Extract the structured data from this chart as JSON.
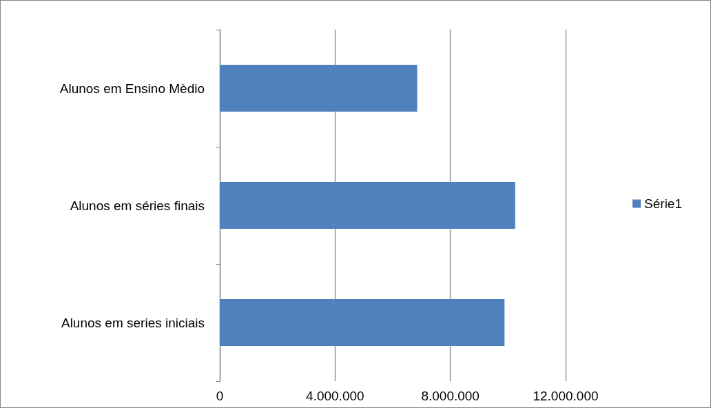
{
  "chart_data": {
    "type": "bar",
    "orientation": "horizontal",
    "categories": [
      "Alunos em Ensino Mèdio",
      "Alunos em séries finais",
      "Alunos em series iniciais"
    ],
    "series": [
      {
        "name": "Série1",
        "color": "#4f81bd",
        "values": [
          6850000,
          10250000,
          9880000
        ]
      }
    ],
    "xlim": [
      0,
      12000000
    ],
    "xticks": [
      {
        "value": 0,
        "label": "0"
      },
      {
        "value": 4000000,
        "label": "4.000.000"
      },
      {
        "value": 8000000,
        "label": "8.000.000"
      },
      {
        "value": 12000000,
        "label": "12.000.000"
      }
    ],
    "grid": "x",
    "legend": "right"
  }
}
